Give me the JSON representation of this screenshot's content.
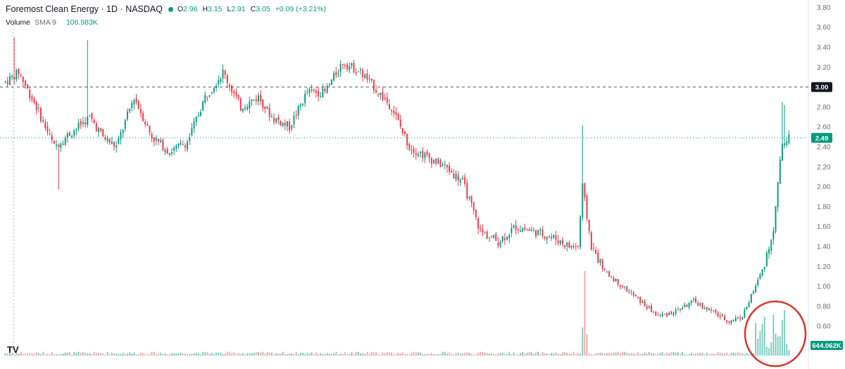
{
  "header": {
    "title": "Foremost Clean Energy · 1D · NASDAQ",
    "status_color": "#089981",
    "o_label": "O",
    "o_value": "2.96",
    "h_label": "H",
    "h_value": "3.15",
    "l_label": "L",
    "l_value": "2.91",
    "c_label": "C",
    "c_value": "3.05",
    "change": "+0.09 (+3.21%)",
    "volume_label": "Volume",
    "volume_sma": "SMA 9",
    "volume_value": "106.983K"
  },
  "logo_text": "TV",
  "colors": {
    "up": "#089981",
    "down": "#f23645",
    "volume_up": "#7fccc0",
    "volume_down": "#f7a9a7",
    "annotation": "#d9342b"
  },
  "chart_data": {
    "type": "candlestick",
    "y_axis": {
      "ticks": [
        "3.80",
        "3.60",
        "3.40",
        "3.20",
        "3.00",
        "2.80",
        "2.60",
        "2.40",
        "2.20",
        "2.00",
        "1.80",
        "1.60",
        "1.40",
        "1.20",
        "1.00",
        "0.80",
        "0.60"
      ],
      "ylim": [
        0.45,
        3.85
      ]
    },
    "price_lines": [
      {
        "value": 3.0,
        "label": "3.00",
        "style": "dashed",
        "badge_color": "#131722"
      },
      {
        "value": 2.49,
        "label": "2.49",
        "style": "dotted",
        "badge_color": "#089981"
      }
    ],
    "volume_label": "644.062K",
    "volume_label_color": "#089981",
    "anchors": [
      [
        0,
        3.05
      ],
      [
        6,
        3.15
      ],
      [
        14,
        2.8
      ],
      [
        22,
        2.4
      ],
      [
        30,
        2.55
      ],
      [
        38,
        2.7
      ],
      [
        44,
        2.5
      ],
      [
        50,
        2.4
      ],
      [
        58,
        2.9
      ],
      [
        66,
        2.5
      ],
      [
        74,
        2.35
      ],
      [
        82,
        2.45
      ],
      [
        90,
        2.9
      ],
      [
        98,
        3.15
      ],
      [
        106,
        2.8
      ],
      [
        114,
        2.9
      ],
      [
        120,
        2.7
      ],
      [
        128,
        2.6
      ],
      [
        136,
        2.95
      ],
      [
        144,
        2.95
      ],
      [
        152,
        3.25
      ],
      [
        160,
        3.15
      ],
      [
        166,
        3.0
      ],
      [
        174,
        2.8
      ],
      [
        182,
        2.4
      ],
      [
        190,
        2.3
      ],
      [
        198,
        2.2
      ],
      [
        206,
        2.05
      ],
      [
        214,
        1.55
      ],
      [
        222,
        1.45
      ],
      [
        230,
        1.6
      ],
      [
        238,
        1.55
      ],
      [
        246,
        1.5
      ],
      [
        254,
        1.4
      ],
      [
        258,
        1.4
      ],
      [
        260,
        2.0
      ],
      [
        264,
        1.4
      ],
      [
        270,
        1.15
      ],
      [
        278,
        1.0
      ],
      [
        286,
        0.85
      ],
      [
        294,
        0.7
      ],
      [
        302,
        0.75
      ],
      [
        310,
        0.85
      ],
      [
        318,
        0.75
      ],
      [
        326,
        0.65
      ],
      [
        332,
        0.7
      ],
      [
        338,
        1.0
      ],
      [
        342,
        1.2
      ],
      [
        346,
        1.6
      ],
      [
        350,
        2.45
      ],
      [
        353,
        2.49
      ]
    ],
    "candle_count": 354
  }
}
